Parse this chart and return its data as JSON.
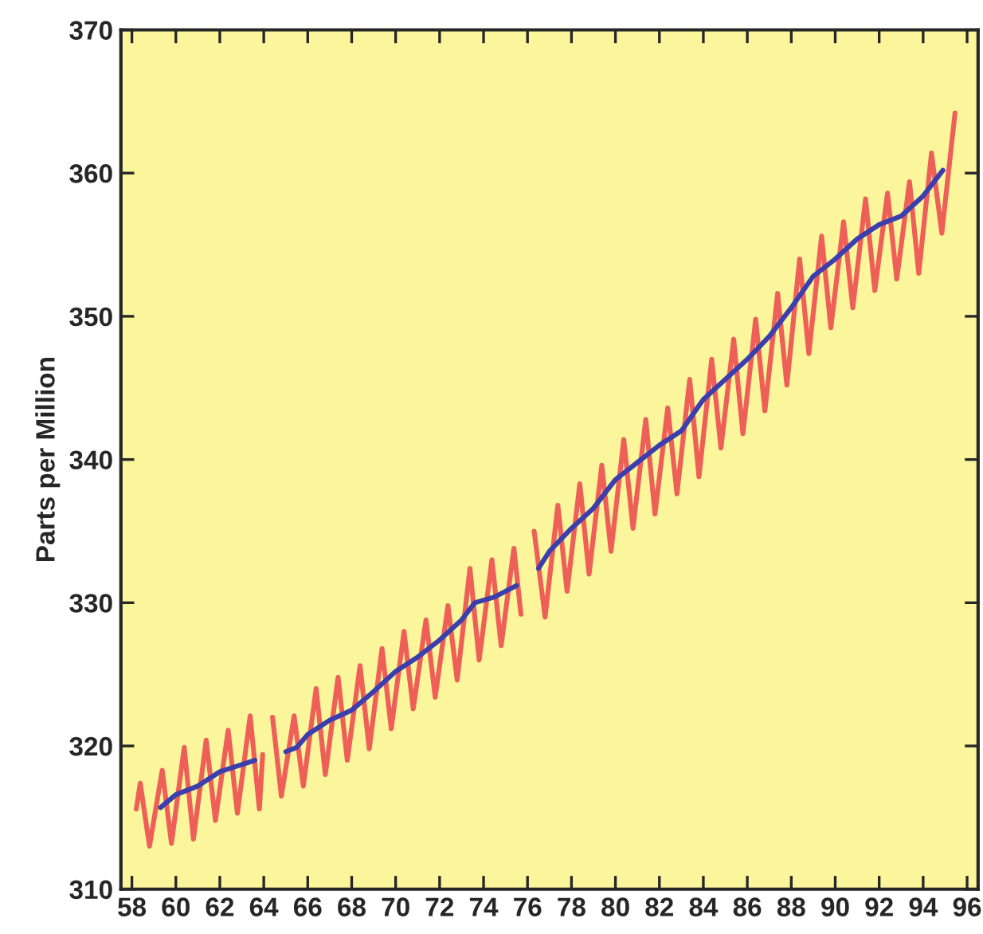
{
  "chart_data": {
    "type": "line",
    "ylabel": "Parts per Million",
    "xlim": [
      57.5,
      96.5
    ],
    "xticks": [
      58,
      60,
      62,
      64,
      66,
      68,
      70,
      72,
      74,
      76,
      78,
      80,
      82,
      84,
      86,
      88,
      90,
      92,
      94,
      96
    ],
    "ylim": [
      310,
      370
    ],
    "yticks": [
      310,
      320,
      330,
      340,
      350,
      360,
      370
    ],
    "grid": false,
    "legend": false,
    "marker": "none",
    "line_style": "solid",
    "series": [
      {
        "color": "#ee5f57",
        "x": [
          58.2,
          58.38,
          58.8,
          59.38,
          59.8,
          60.38,
          60.8,
          61.38,
          61.8,
          62.38,
          62.8,
          63.38,
          63.8,
          63.95,
          64.2,
          64.4,
          64.8,
          65.38,
          65.8,
          66.38,
          66.8,
          67.38,
          67.8,
          68.38,
          68.8,
          69.38,
          69.8,
          70.38,
          70.8,
          71.38,
          71.8,
          72.38,
          72.8,
          73.38,
          73.8,
          74.38,
          74.8,
          75.38,
          75.7,
          75.95,
          76.3,
          76.8,
          77.38,
          77.8,
          78.38,
          78.8,
          79.38,
          79.8,
          80.38,
          80.8,
          81.38,
          81.8,
          82.38,
          82.8,
          83.38,
          83.8,
          84.38,
          84.8,
          85.38,
          85.8,
          86.38,
          86.8,
          87.38,
          87.8,
          88.38,
          88.8,
          89.38,
          89.8,
          90.38,
          90.8,
          91.38,
          91.8,
          92.38,
          92.8,
          93.38,
          93.8,
          94.38,
          94.85,
          95.45
        ],
        "values": [
          315.6,
          317.4,
          313.0,
          318.3,
          313.2,
          319.9,
          313.5,
          320.4,
          314.8,
          321.1,
          315.3,
          322.1,
          315.6,
          319.4,
          null,
          322.0,
          316.5,
          322.1,
          317.2,
          324.0,
          318.0,
          324.8,
          319.0,
          325.6,
          319.8,
          326.8,
          321.2,
          328.0,
          322.6,
          328.8,
          323.4,
          329.8,
          324.6,
          332.4,
          326.0,
          333.0,
          327.0,
          333.8,
          329.2,
          null,
          335.0,
          329.0,
          336.8,
          330.8,
          338.3,
          332.0,
          339.6,
          333.6,
          341.4,
          335.2,
          342.8,
          336.2,
          343.6,
          337.6,
          345.6,
          338.8,
          347.0,
          340.8,
          348.4,
          341.8,
          349.8,
          343.4,
          351.6,
          345.2,
          354.0,
          347.4,
          355.6,
          349.2,
          356.6,
          350.6,
          358.2,
          351.8,
          358.6,
          352.6,
          359.4,
          353.0,
          361.4,
          355.8,
          364.2
        ]
      },
      {
        "color": "#3b3fae",
        "x": [
          59.3,
          60.0,
          61.0,
          62.0,
          63.0,
          63.6,
          64.3,
          65.0,
          65.5,
          66.0,
          67.0,
          68.0,
          69.0,
          70.0,
          71.0,
          72.0,
          73.0,
          73.6,
          74.5,
          75.5,
          76.0,
          76.5,
          77.0,
          78.0,
          79.0,
          80.0,
          81.0,
          82.0,
          83.0,
          84.0,
          85.0,
          86.0,
          87.0,
          88.0,
          89.0,
          90.0,
          91.0,
          92.0,
          93.0,
          94.0,
          94.9
        ],
        "values": [
          315.7,
          316.6,
          317.2,
          318.2,
          318.7,
          319.0,
          null,
          319.6,
          319.9,
          320.8,
          321.8,
          322.5,
          323.8,
          325.2,
          326.2,
          327.4,
          328.8,
          330.0,
          330.4,
          331.2,
          null,
          332.4,
          333.6,
          335.2,
          336.6,
          338.6,
          339.8,
          341.0,
          342.0,
          344.2,
          345.6,
          347.0,
          348.6,
          350.6,
          352.8,
          354.0,
          355.4,
          356.4,
          357.0,
          358.4,
          360.2
        ]
      }
    ]
  }
}
